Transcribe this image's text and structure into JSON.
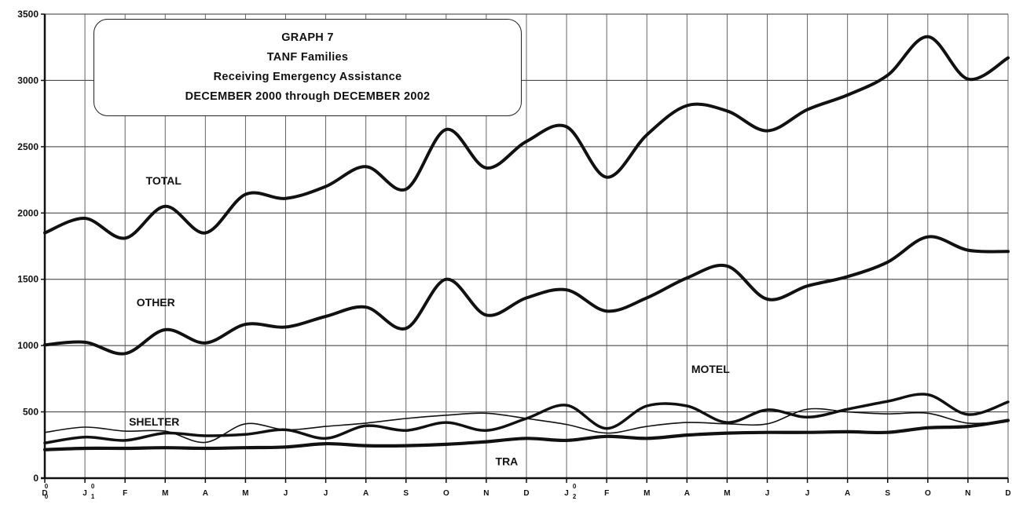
{
  "chart_data": {
    "type": "line",
    "title_lines": [
      "GRAPH 7",
      "TANF Families",
      "Receiving Emergency Assistance",
      "DECEMBER 2000 through DECEMBER 2002"
    ],
    "ylim": [
      0,
      3500
    ],
    "yticks": [
      0,
      500,
      1000,
      1500,
      2000,
      2500,
      3000,
      3500
    ],
    "grid": true,
    "x_tick_labels": [
      "D",
      "J",
      "F",
      "M",
      "A",
      "M",
      "J",
      "J",
      "A",
      "S",
      "O",
      "N",
      "D",
      "J",
      "F",
      "M",
      "A",
      "M",
      "J",
      "J",
      "A",
      "S",
      "O",
      "N",
      "D"
    ],
    "x_year_marks": [
      {
        "index": 0,
        "label": "0\n0"
      },
      {
        "index": 1,
        "label": "0\n1"
      },
      {
        "index": 13,
        "label": "0\n2"
      }
    ],
    "series": [
      {
        "name": "TOTAL",
        "values": [
          1850,
          1960,
          1810,
          2050,
          1850,
          2140,
          2110,
          2200,
          2350,
          2180,
          2630,
          2340,
          2540,
          2650,
          2270,
          2590,
          2810,
          2770,
          2620,
          2780,
          2890,
          3040,
          3330,
          3010,
          3170
        ]
      },
      {
        "name": "OTHER",
        "values": [
          1005,
          1025,
          940,
          1120,
          1020,
          1160,
          1140,
          1220,
          1290,
          1130,
          1500,
          1230,
          1360,
          1420,
          1260,
          1360,
          1510,
          1600,
          1350,
          1450,
          1520,
          1630,
          1820,
          1720,
          1710
        ]
      },
      {
        "name": "MOTEL",
        "values": [
          265,
          310,
          285,
          340,
          320,
          330,
          365,
          300,
          395,
          360,
          420,
          360,
          450,
          550,
          375,
          545,
          545,
          420,
          515,
          460,
          520,
          580,
          630,
          480,
          575
        ]
      },
      {
        "name": "SHELTER",
        "values": [
          345,
          385,
          355,
          355,
          270,
          410,
          365,
          390,
          415,
          450,
          475,
          490,
          450,
          405,
          340,
          390,
          420,
          410,
          410,
          520,
          500,
          485,
          490,
          415,
          430
        ]
      },
      {
        "name": "TRA",
        "values": [
          215,
          225,
          225,
          230,
          225,
          230,
          235,
          260,
          245,
          245,
          255,
          275,
          300,
          285,
          315,
          300,
          325,
          340,
          345,
          345,
          350,
          345,
          380,
          390,
          435
        ]
      }
    ]
  }
}
